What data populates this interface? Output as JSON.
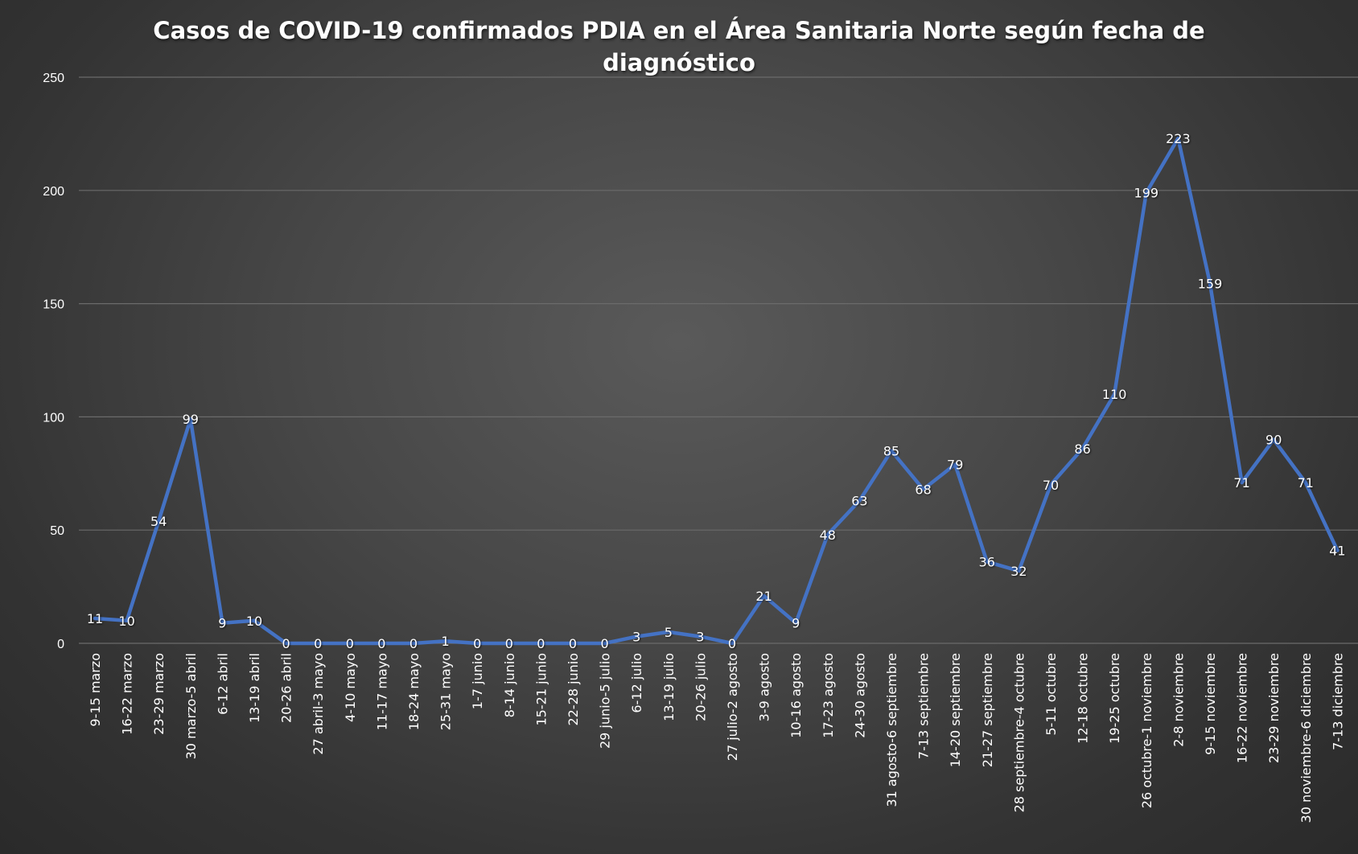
{
  "chart_data": {
    "type": "line",
    "title": "Casos de COVID-19 confirmados PDIA en el Área Sanitaria Norte según fecha de diagnóstico",
    "title_lines": [
      "Casos de COVID-19 confirmados PDIA en el Área Sanitaria Norte según fecha de",
      "diagnóstico"
    ],
    "xlabel": "",
    "ylabel": "",
    "ylim": [
      0,
      250
    ],
    "yticks": [
      0,
      50,
      100,
      150,
      200,
      250
    ],
    "grid": true,
    "legend": "none",
    "line_color": "#4472c4",
    "categories": [
      "9-15 marzo",
      "16-22 marzo",
      "23-29 marzo",
      "30 marzo-5 abril",
      "6-12 abril",
      "13-19 abril",
      "20-26 abril",
      "27 abril-3 mayo",
      "4-10 mayo",
      "11-17 mayo",
      "18-24 mayo",
      "25-31 mayo",
      "1-7 junio",
      "8-14 junio",
      "15-21 junio",
      "22-28 junio",
      "29 junio-5 julio",
      "6-12 julio",
      "13-19 julio",
      "20-26 julio",
      "27 julio-2 agosto",
      "3-9 agosto",
      "10-16 agosto",
      "17-23 agosto",
      "24-30 agosto",
      "31 agosto-6 septiembre",
      "7-13 septiembre",
      "14-20 septiembre",
      "21-27 septiembre",
      "28 septiembre-4 octubre",
      "5-11 octubre",
      "12-18 octubre",
      "19-25 octubre",
      "26 octubre-1 noviembre",
      "2-8 noviembre",
      "9-15 noviembre",
      "16-22 noviembre",
      "23-29 noviembre",
      "30 noviembre-6 diciembre",
      "7-13 diciembre"
    ],
    "series": [
      {
        "values": [
          11,
          10,
          54,
          99,
          9,
          10,
          0,
          0,
          0,
          0,
          0,
          1,
          0,
          0,
          0,
          0,
          0,
          3,
          5,
          3,
          0,
          21,
          9,
          48,
          63,
          85,
          68,
          79,
          36,
          32,
          70,
          86,
          110,
          199,
          223,
          159,
          71,
          90,
          71,
          41
        ]
      }
    ]
  }
}
